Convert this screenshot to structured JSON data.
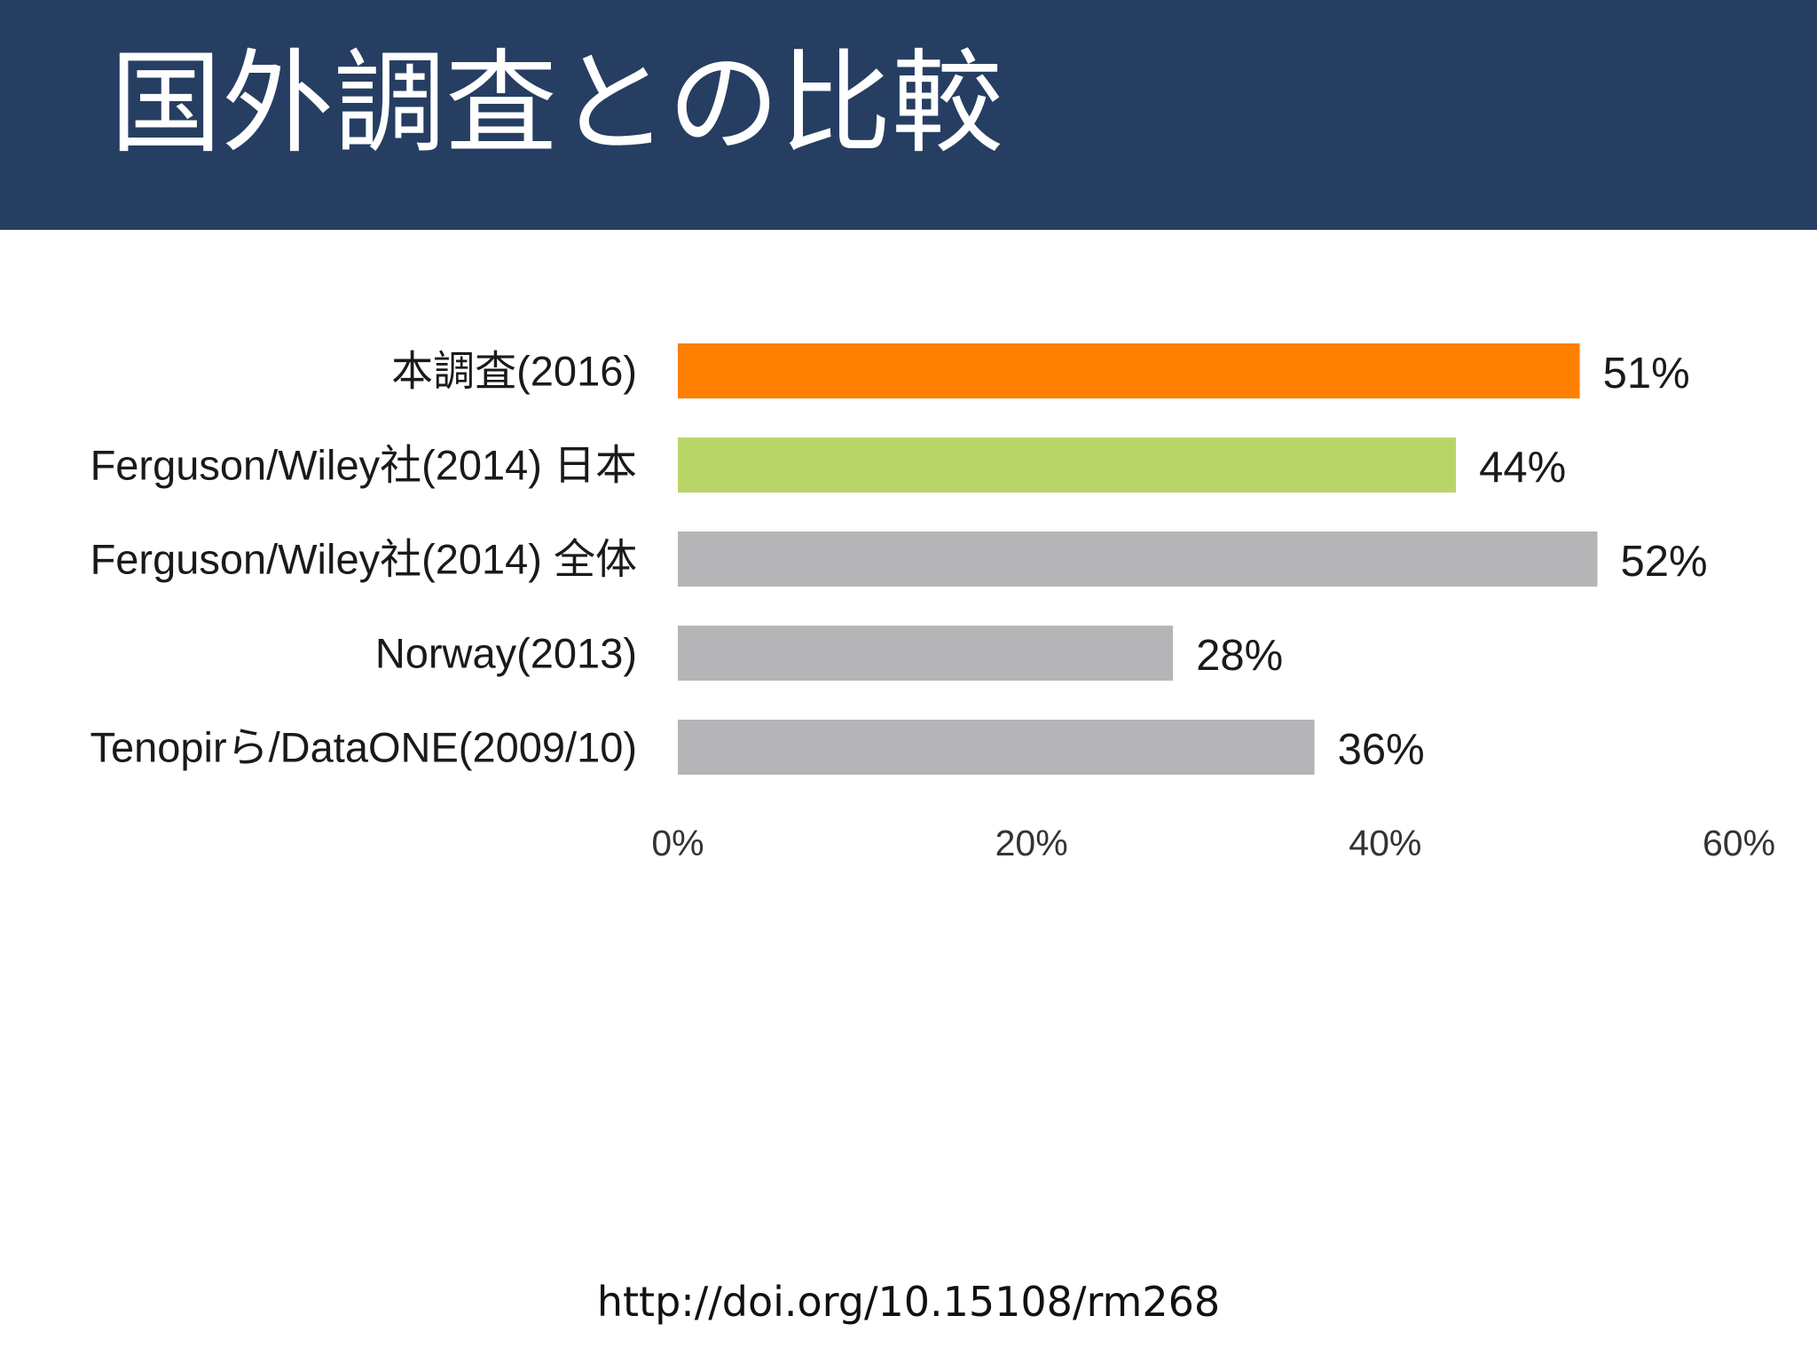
{
  "slide": {
    "title": "国外調査との比較",
    "source": "http://doi.org/10.15108/rm268"
  },
  "chart_data": {
    "type": "bar",
    "orientation": "horizontal",
    "categories": [
      "本調査(2016)",
      "Ferguson/Wiley社(2014) 日本",
      "Ferguson/Wiley社(2014) 全体",
      "Norway(2013)",
      "Tenopirら/DataONE(2009/10)"
    ],
    "values": [
      51,
      44,
      52,
      28,
      36
    ],
    "value_labels": [
      "51%",
      "44%",
      "52%",
      "28%",
      "36%"
    ],
    "bar_colors": [
      "#FF7F00",
      "#B9D56A",
      "#B5B4B6",
      "#B5B4B6",
      "#B5B4B6"
    ],
    "xlim": [
      0,
      60
    ],
    "x_ticks": [
      0,
      20,
      40,
      60
    ],
    "x_tick_labels": [
      "0%",
      "20%",
      "40%",
      "60%"
    ],
    "grid": false,
    "legend": false
  },
  "colors": {
    "header_background": "#263E62",
    "title_text": "#FFFFFF"
  }
}
